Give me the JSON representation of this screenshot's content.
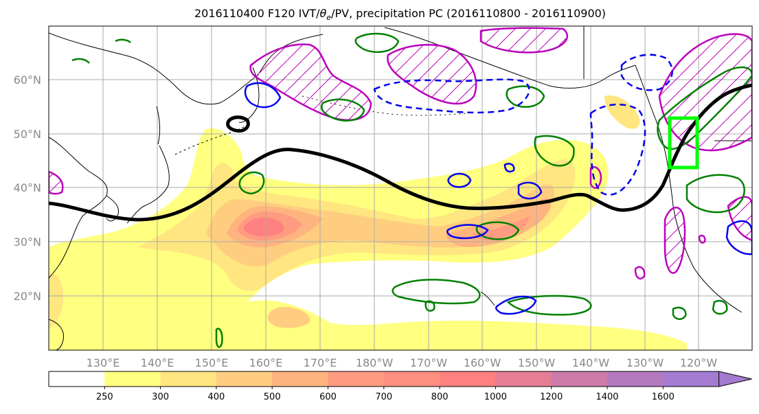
{
  "title": {
    "prefix": "2016110400 F120 IVT/",
    "theta": "θ",
    "theta_sub": "e",
    "suffix": "/PV, precipitation PC (2016110800 - 2016110900)"
  },
  "lat_labels": [
    "60°N",
    "50°N",
    "40°N",
    "30°N",
    "20°N"
  ],
  "lon_labels": [
    "130°E",
    "140°E",
    "150°E",
    "160°E",
    "170°E",
    "180°W",
    "170°W",
    "160°W",
    "150°W",
    "140°W",
    "130°W",
    "120°W"
  ],
  "colorbar": {
    "ticks": [
      "250",
      "300",
      "400",
      "500",
      "600",
      "700",
      "800",
      "1000",
      "1200",
      "1400",
      "1600"
    ],
    "colors": [
      "#ffffff",
      "#ffff80",
      "#ffe680",
      "#ffcd80",
      "#ffb480",
      "#ff9b80",
      "#ff8f80",
      "#ff8080",
      "#e67d95",
      "#cc7baa",
      "#b47abf",
      "#a37bd1"
    ]
  },
  "colors": {
    "jet_contour": "#000000",
    "pv_anomaly": "#bb00bb",
    "theta_e_positive": "#008000",
    "theta_e_negative": "#0000ee",
    "target_box": "#00ff00"
  }
}
